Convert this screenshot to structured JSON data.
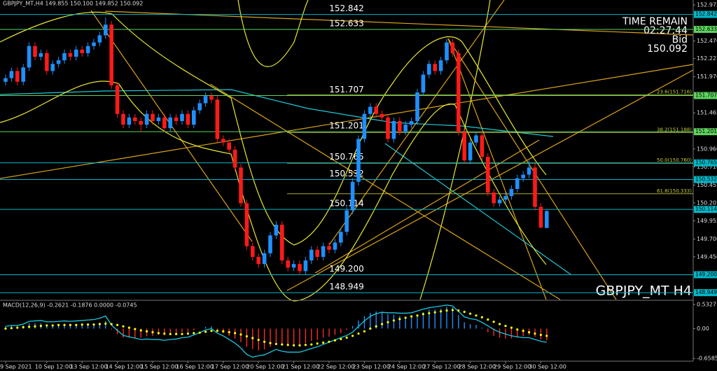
{
  "chart_data": {
    "type": "candlestick",
    "header": "GBPJPY_MT,H4  149.855 150.100 149.852 150.092",
    "watermark": "GBPJPY_MT H4",
    "info": [
      "TIME REMAIN",
      "02:27:44",
      "Bid",
      "150.092"
    ],
    "up_color": "#1e90ff",
    "down_color": "#ff1a1a",
    "ylim": [
      148.852,
      153.044
    ],
    "yticks": [
      152.975,
      {
        "value": 152.47,
        "label": "152.470"
      },
      152.225,
      {
        "value": 151.97,
        "label": "151.970"
      },
      151.465,
      {
        "value": 150.96,
        "label": "150.960"
      },
      {
        "value": 150.71,
        "label": "150.710"
      },
      150.455,
      150.205,
      149.955,
      {
        "value": 149.7,
        "label": "149.700"
      },
      {
        "value": 149.45,
        "label": "149.450"
      }
    ],
    "levels": [
      {
        "value": 152.842,
        "color": "#00b8c8"
      },
      {
        "value": 152.633,
        "color": "#5fd35f"
      },
      {
        "value": 151.707,
        "color": "#5fd35f"
      },
      {
        "value": 151.201,
        "color": "#5fd35f"
      },
      {
        "value": 150.765,
        "color": "#00b8c8"
      },
      {
        "value": 150.532,
        "color": "#00b8c8"
      },
      {
        "value": 150.114,
        "color": "#00b8c8"
      },
      {
        "value": 149.2,
        "label": "149.200",
        "color": "#00b8c8"
      },
      {
        "value": 148.949,
        "color": "#00b8c8"
      }
    ],
    "fib_levels": [
      {
        "value": 151.716,
        "label": "23.6(151.716)"
      },
      {
        "value": 151.188,
        "label": "38.2(151.188)"
      },
      {
        "value": 150.76,
        "label": "50.0(150.760)"
      },
      {
        "value": 150.333,
        "label": "61.8(150.333)"
      }
    ],
    "fib_color": "#c8c83c",
    "categories": [
      "9 Sep 2021",
      null,
      null,
      null,
      null,
      null,
      null,
      "10 Sep 12:00",
      null,
      null,
      null,
      null,
      null,
      "13 Sep 12:00",
      null,
      null,
      null,
      null,
      null,
      "14 Sep 12:00",
      null,
      null,
      null,
      null,
      null,
      "15 Sep 12:00",
      null,
      null,
      null,
      null,
      null,
      "16 Sep 12:00",
      null,
      null,
      null,
      null,
      null,
      "17 Sep 12:00",
      null,
      null,
      null,
      null,
      null,
      "20 Sep 12:00",
      null,
      null,
      null,
      null,
      null,
      "21 Sep 12:00",
      null,
      null,
      null,
      null,
      null,
      "22 Sep 12:00",
      null,
      null,
      null,
      null,
      null,
      "23 Sep 12:00",
      null,
      null,
      null,
      null,
      null,
      "24 Sep 12:00",
      null,
      null,
      null,
      null,
      null,
      "27 Sep 12:00",
      null,
      null,
      null,
      null,
      null,
      "28 Sep 12:00",
      null,
      null,
      null,
      null,
      null,
      "29 Sep 12:00",
      null,
      null,
      null,
      null,
      null,
      "30 Sep 12:00",
      null
    ],
    "candles": [
      [
        151.9,
        152.0,
        151.85,
        151.95
      ],
      [
        151.95,
        152.1,
        151.9,
        152.05
      ],
      [
        152.05,
        152.1,
        151.85,
        151.9
      ],
      [
        151.9,
        152.15,
        151.85,
        152.1
      ],
      [
        152.1,
        152.45,
        152.05,
        152.4
      ],
      [
        152.4,
        152.45,
        152.2,
        152.25
      ],
      [
        152.25,
        152.35,
        152.2,
        152.3
      ],
      [
        152.3,
        152.35,
        152.0,
        152.05
      ],
      [
        152.05,
        152.2,
        152.0,
        152.15
      ],
      [
        152.15,
        152.25,
        152.1,
        152.2
      ],
      [
        152.2,
        152.35,
        152.15,
        152.3
      ],
      [
        152.3,
        152.35,
        152.2,
        152.25
      ],
      [
        152.25,
        152.4,
        152.2,
        152.35
      ],
      [
        152.35,
        152.4,
        152.25,
        152.3
      ],
      [
        152.3,
        152.45,
        152.25,
        152.4
      ],
      [
        152.4,
        152.5,
        152.35,
        152.45
      ],
      [
        152.45,
        152.6,
        152.4,
        152.55
      ],
      [
        152.55,
        152.8,
        152.5,
        152.7
      ],
      [
        152.7,
        152.75,
        151.8,
        151.85
      ],
      [
        151.85,
        151.9,
        151.4,
        151.45
      ],
      [
        151.45,
        151.5,
        151.25,
        151.3
      ],
      [
        151.3,
        151.45,
        151.25,
        151.4
      ],
      [
        151.4,
        151.45,
        151.3,
        151.35
      ],
      [
        151.35,
        151.4,
        151.2,
        151.3
      ],
      [
        151.3,
        151.5,
        151.25,
        151.45
      ],
      [
        151.45,
        151.5,
        151.3,
        151.35
      ],
      [
        151.35,
        151.45,
        151.3,
        151.4
      ],
      [
        151.4,
        151.45,
        151.2,
        151.25
      ],
      [
        151.25,
        151.45,
        151.2,
        151.4
      ],
      [
        151.4,
        151.45,
        151.3,
        151.35
      ],
      [
        151.35,
        151.5,
        151.3,
        151.45
      ],
      [
        151.45,
        151.5,
        151.25,
        151.3
      ],
      [
        151.3,
        151.55,
        151.25,
        151.5
      ],
      [
        151.5,
        151.65,
        151.45,
        151.6
      ],
      [
        151.6,
        151.75,
        151.55,
        151.7
      ],
      [
        151.7,
        151.75,
        151.6,
        151.65
      ],
      [
        151.65,
        151.7,
        151.05,
        151.1
      ],
      [
        151.1,
        151.15,
        151.0,
        151.05
      ],
      [
        151.05,
        151.1,
        150.9,
        150.95
      ],
      [
        150.95,
        151.0,
        150.65,
        150.7
      ],
      [
        150.7,
        150.75,
        150.15,
        150.2
      ],
      [
        150.2,
        150.25,
        149.55,
        149.6
      ],
      [
        149.6,
        149.65,
        149.4,
        149.45
      ],
      [
        149.45,
        149.5,
        149.3,
        149.35
      ],
      [
        149.35,
        149.55,
        149.3,
        149.5
      ],
      [
        149.5,
        149.8,
        149.45,
        149.75
      ],
      [
        149.75,
        149.95,
        149.7,
        149.9
      ],
      [
        149.9,
        149.95,
        149.35,
        149.4
      ],
      [
        149.4,
        149.45,
        149.25,
        149.3
      ],
      [
        149.3,
        149.4,
        149.25,
        149.35
      ],
      [
        149.35,
        149.4,
        149.2,
        149.25
      ],
      [
        149.25,
        149.45,
        149.2,
        149.4
      ],
      [
        149.4,
        149.6,
        149.35,
        149.55
      ],
      [
        149.55,
        149.6,
        149.4,
        149.45
      ],
      [
        149.45,
        149.65,
        149.4,
        149.6
      ],
      [
        149.6,
        149.65,
        149.5,
        149.55
      ],
      [
        149.55,
        149.7,
        149.5,
        149.65
      ],
      [
        149.65,
        149.85,
        149.6,
        149.8
      ],
      [
        149.8,
        150.15,
        149.75,
        150.1
      ],
      [
        150.1,
        150.55,
        150.05,
        150.5
      ],
      [
        150.5,
        151.15,
        150.45,
        151.1
      ],
      [
        151.1,
        151.5,
        151.05,
        151.45
      ],
      [
        151.45,
        151.6,
        151.4,
        151.55
      ],
      [
        151.55,
        151.6,
        151.4,
        151.45
      ],
      [
        151.45,
        151.5,
        151.35,
        151.4
      ],
      [
        151.4,
        151.45,
        151.05,
        151.1
      ],
      [
        151.1,
        151.4,
        151.05,
        151.35
      ],
      [
        151.35,
        151.4,
        151.15,
        151.2
      ],
      [
        151.2,
        151.35,
        151.15,
        151.3
      ],
      [
        151.3,
        151.4,
        151.25,
        151.35
      ],
      [
        151.35,
        151.8,
        151.3,
        151.75
      ],
      [
        151.75,
        152.05,
        151.7,
        152.0
      ],
      [
        152.0,
        152.2,
        151.95,
        152.15
      ],
      [
        152.15,
        152.2,
        152.0,
        152.05
      ],
      [
        152.05,
        152.25,
        152.0,
        152.2
      ],
      [
        152.2,
        152.5,
        152.15,
        152.45
      ],
      [
        152.45,
        152.5,
        152.25,
        152.3
      ],
      [
        152.3,
        152.35,
        151.15,
        151.2
      ],
      [
        151.2,
        151.25,
        150.75,
        150.8
      ],
      [
        150.8,
        151.1,
        150.75,
        151.05
      ],
      [
        151.05,
        151.2,
        151.0,
        151.15
      ],
      [
        151.15,
        151.2,
        150.8,
        150.85
      ],
      [
        150.85,
        150.9,
        150.3,
        150.35
      ],
      [
        150.35,
        150.4,
        150.15,
        150.2
      ],
      [
        150.2,
        150.3,
        150.15,
        150.25
      ],
      [
        150.25,
        150.35,
        150.2,
        150.3
      ],
      [
        150.3,
        150.45,
        150.25,
        150.4
      ],
      [
        150.4,
        150.6,
        150.35,
        150.55
      ],
      [
        150.55,
        150.65,
        150.5,
        150.6
      ],
      [
        150.6,
        150.8,
        150.55,
        150.7
      ],
      [
        150.7,
        150.75,
        150.1,
        150.15
      ],
      [
        150.15,
        150.2,
        149.85,
        149.86
      ],
      [
        149.855,
        150.1,
        149.852,
        150.092
      ]
    ],
    "macd": {
      "title": "MACD(12,26,9) -0.2621 -0.1876 0.0000 -0.0745",
      "ylim": [
        -0.72,
        0.61
      ],
      "yticks": [
        0.5327,
        {
          "value": 0,
          "label": "0.00"
        },
        -0.6585
      ],
      "histogram": {
        "up_color": "#1e90ff",
        "down_color": "#ff2a2a",
        "values": [
          0.05,
          0.06,
          0.05,
          0.07,
          0.12,
          0.12,
          0.12,
          0.08,
          0.08,
          0.08,
          0.09,
          0.08,
          0.09,
          0.09,
          0.1,
          0.11,
          0.13,
          0.17,
          -0.02,
          -0.12,
          -0.2,
          -0.2,
          -0.2,
          -0.2,
          -0.17,
          -0.16,
          -0.14,
          -0.15,
          -0.12,
          -0.11,
          -0.08,
          -0.08,
          -0.04,
          0.0,
          0.04,
          0.05,
          -0.05,
          -0.1,
          -0.16,
          -0.22,
          -0.3,
          -0.4,
          -0.45,
          -0.48,
          -0.46,
          -0.4,
          -0.33,
          -0.36,
          -0.37,
          -0.36,
          -0.36,
          -0.32,
          -0.27,
          -0.25,
          -0.2,
          -0.18,
          -0.14,
          -0.1,
          -0.03,
          0.06,
          0.18,
          0.28,
          0.35,
          0.38,
          0.38,
          0.32,
          0.31,
          0.28,
          0.26,
          0.25,
          0.3,
          0.36,
          0.42,
          0.42,
          0.44,
          0.48,
          0.47,
          0.3,
          0.14,
          0.1,
          0.08,
          0.02,
          -0.08,
          -0.16,
          -0.2,
          -0.22,
          -0.22,
          -0.2,
          -0.17,
          -0.14,
          -0.18,
          -0.24,
          -0.26
        ]
      },
      "signal": {
        "color": "#ffff00",
        "values": [
          0.0,
          0.01,
          0.02,
          0.03,
          0.04,
          0.05,
          0.06,
          0.07,
          0.07,
          0.08,
          0.08,
          0.08,
          0.08,
          0.09,
          0.09,
          0.09,
          0.1,
          0.11,
          0.1,
          0.08,
          0.05,
          0.02,
          -0.01,
          -0.04,
          -0.06,
          -0.08,
          -0.1,
          -0.11,
          -0.12,
          -0.12,
          -0.12,
          -0.11,
          -0.1,
          -0.09,
          -0.07,
          -0.05,
          -0.05,
          -0.06,
          -0.08,
          -0.1,
          -0.13,
          -0.17,
          -0.21,
          -0.25,
          -0.29,
          -0.32,
          -0.34,
          -0.35,
          -0.36,
          -0.37,
          -0.37,
          -0.36,
          -0.35,
          -0.33,
          -0.31,
          -0.29,
          -0.26,
          -0.23,
          -0.2,
          -0.16,
          -0.11,
          -0.06,
          0.0,
          0.05,
          0.1,
          0.14,
          0.18,
          0.21,
          0.24,
          0.27,
          0.29,
          0.32,
          0.34,
          0.36,
          0.38,
          0.4,
          0.41,
          0.4,
          0.37,
          0.33,
          0.29,
          0.25,
          0.2,
          0.15,
          0.1,
          0.06,
          0.02,
          -0.02,
          -0.05,
          -0.08,
          -0.11,
          -0.14,
          -0.16
        ]
      },
      "main_line": {
        "color": "#18c8e0",
        "values": [
          0.05,
          0.07,
          0.07,
          0.1,
          0.16,
          0.17,
          0.18,
          0.15,
          0.15,
          0.16,
          0.17,
          0.16,
          0.17,
          0.18,
          0.19,
          0.2,
          0.23,
          0.28,
          0.08,
          -0.04,
          -0.15,
          -0.18,
          -0.21,
          -0.24,
          -0.23,
          -0.24,
          -0.24,
          -0.26,
          -0.24,
          -0.23,
          -0.2,
          -0.19,
          -0.14,
          -0.09,
          -0.03,
          0.0,
          -0.1,
          -0.16,
          -0.24,
          -0.32,
          -0.43,
          -0.57,
          -0.63,
          -0.6,
          -0.58,
          -0.52,
          -0.46,
          -0.5,
          -0.52,
          -0.52,
          -0.52,
          -0.48,
          -0.44,
          -0.4,
          -0.35,
          -0.3,
          -0.25,
          -0.2,
          -0.15,
          -0.08,
          0.05,
          0.17,
          0.27,
          0.33,
          0.36,
          0.35,
          0.35,
          0.34,
          0.34,
          0.35,
          0.39,
          0.43,
          0.46,
          0.48,
          0.5,
          0.52,
          0.5,
          0.38,
          0.26,
          0.22,
          0.2,
          0.14,
          0.06,
          -0.02,
          -0.08,
          -0.12,
          -0.16,
          -0.18,
          -0.2,
          -0.2,
          -0.24,
          -0.28,
          -0.3
        ]
      }
    }
  }
}
